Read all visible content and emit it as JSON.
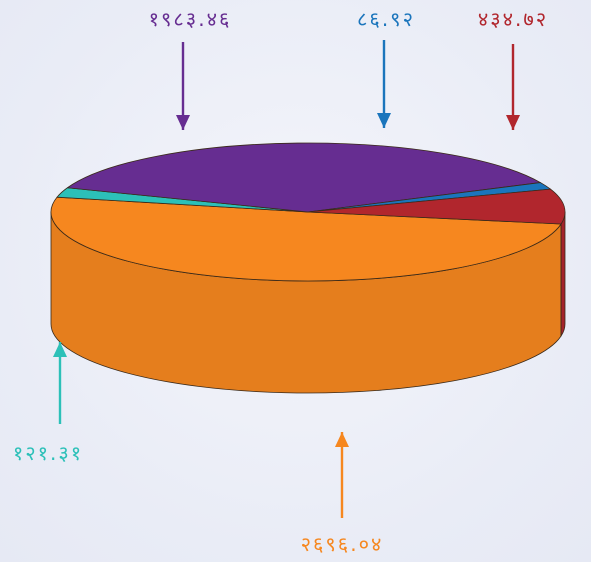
{
  "chart_data": {
    "type": "pie",
    "title": "",
    "slices": [
      {
        "label": "२६९६.०४",
        "value": 2696.04,
        "color": "#f6871f"
      },
      {
        "label": "१२१.३१",
        "value": 121.31,
        "color": "#2cc0b8"
      },
      {
        "label": "१९८३.४६",
        "value": 1983.46,
        "color": "#662d91"
      },
      {
        "label": "८६.९२",
        "value": 86.92,
        "color": "#1b75bc"
      },
      {
        "label": "४३४.७२",
        "value": 434.72,
        "color": "#b1262d"
      }
    ],
    "legend": "none",
    "labels_with_arrows": true
  }
}
